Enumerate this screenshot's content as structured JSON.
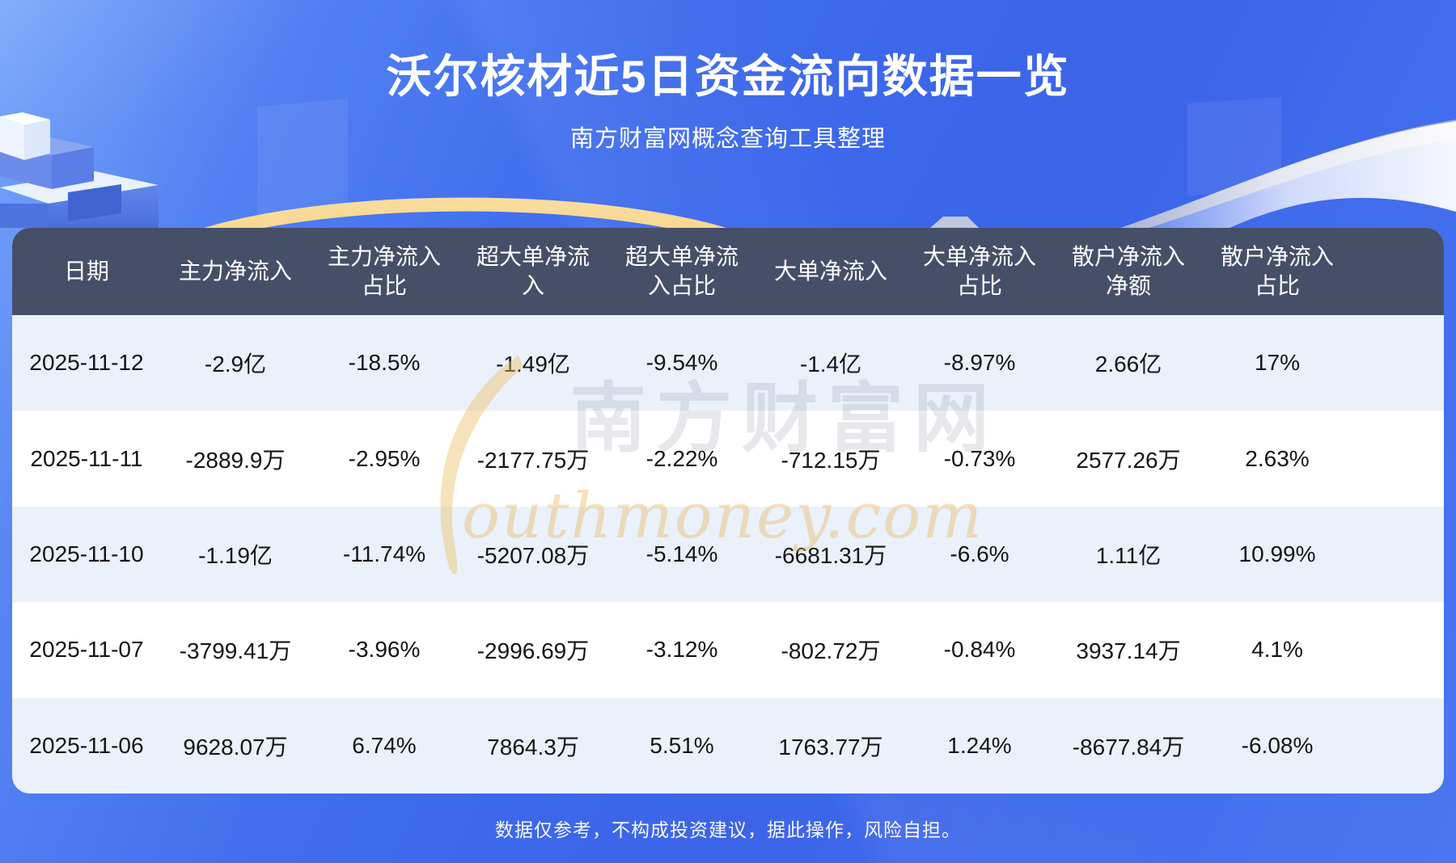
{
  "page": {
    "title": "沃尔核材近5日资金流向数据一览",
    "subtitle": "南方财富网概念查询工具整理",
    "footer": "数据仅参考，不构成投资建议，据此操作，风险自担。"
  },
  "watermark": {
    "cn": "南方财富网",
    "en": "outhmoney.com"
  },
  "colors": {
    "background_blue": "#3f6aed",
    "header_bg": "#464f68",
    "row_alt_bg": "#eaf1fb",
    "row_bg": "#ffffff",
    "accent_gold": "#f2c770",
    "ribbon_white": "#ffffff",
    "text_dark": "#141414",
    "text_light": "#ffffff"
  },
  "table": {
    "header_display": [
      "日期",
      "主力净流入",
      "主力净流入\n占比",
      "超大单净流\n入",
      "超大单净流\n入占比",
      "大单净流入",
      "大单净流入\n占比",
      "散户净流入\n净额",
      "散户净流入\n占比"
    ]
  },
  "chart_data": {
    "type": "table",
    "title": "沃尔核材近5日资金流向数据一览",
    "columns": [
      "日期",
      "主力净流入",
      "主力净流入占比",
      "超大单净流入",
      "超大单净流入占比",
      "大单净流入",
      "大单净流入占比",
      "散户净流入净额",
      "散户净流入占比"
    ],
    "rows": [
      [
        "2025-11-12",
        "-2.9亿",
        "-18.5%",
        "-1.49亿",
        "-9.54%",
        "-1.4亿",
        "-8.97%",
        "2.66亿",
        "17%"
      ],
      [
        "2025-11-11",
        "-2889.9万",
        "-2.95%",
        "-2177.75万",
        "-2.22%",
        "-712.15万",
        "-0.73%",
        "2577.26万",
        "2.63%"
      ],
      [
        "2025-11-10",
        "-1.19亿",
        "-11.74%",
        "-5207.08万",
        "-5.14%",
        "-6681.31万",
        "-6.6%",
        "1.11亿",
        "10.99%"
      ],
      [
        "2025-11-07",
        "-3799.41万",
        "-3.96%",
        "-2996.69万",
        "-3.12%",
        "-802.72万",
        "-0.84%",
        "3937.14万",
        "4.1%"
      ],
      [
        "2025-11-06",
        "9628.07万",
        "6.74%",
        "7864.3万",
        "5.51%",
        "1763.77万",
        "1.24%",
        "-8677.84万",
        "-6.08%"
      ]
    ]
  }
}
